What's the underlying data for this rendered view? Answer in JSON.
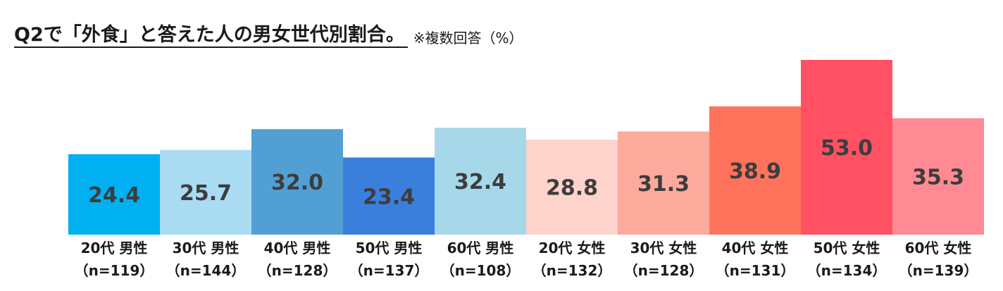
{
  "chart_data": {
    "type": "bar",
    "title": "Q2で「外食」と答えた人の男女世代別割合。",
    "subtitle": "※複数回答（%）",
    "categories": [
      {
        "label": "20代 男性",
        "n": "（n=119）"
      },
      {
        "label": "30代 男性",
        "n": "（n=144）"
      },
      {
        "label": "40代 男性",
        "n": "（n=128）"
      },
      {
        "label": "50代 男性",
        "n": "（n=137）"
      },
      {
        "label": "60代 男性",
        "n": "（n=108）"
      },
      {
        "label": "20代 女性",
        "n": "（n=132）"
      },
      {
        "label": "30代 女性",
        "n": "（n=128）"
      },
      {
        "label": "40代 女性",
        "n": "（n=131）"
      },
      {
        "label": "50代 女性",
        "n": "（n=134）"
      },
      {
        "label": "60代 女性",
        "n": "（n=139）"
      }
    ],
    "values": [
      24.4,
      25.7,
      32.0,
      23.4,
      32.4,
      28.8,
      31.3,
      38.9,
      53.0,
      35.3
    ],
    "value_labels": [
      "24.4",
      "25.7",
      "32.0",
      "23.4",
      "32.4",
      "28.8",
      "31.3",
      "38.9",
      "53.0",
      "35.3"
    ],
    "colors": [
      "#00b0f0",
      "#a9dcf3",
      "#529fd4",
      "#3a7fdc",
      "#a6d8ea",
      "#fdd3cb",
      "#fbaa9c",
      "#ff735c",
      "#ff5163",
      "#ff8a93"
    ],
    "xlabel": "",
    "ylabel": "",
    "ylim": [
      0,
      53
    ],
    "grid": false,
    "legend": "none"
  }
}
